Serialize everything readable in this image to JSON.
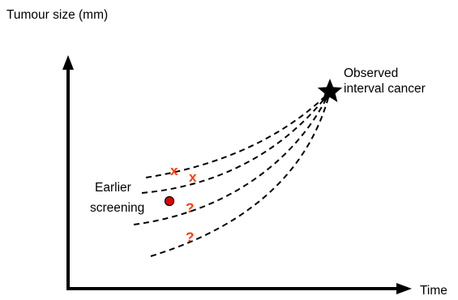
{
  "axes": {
    "y_label": "Tumour size (mm)",
    "x_label": "Time"
  },
  "end_point": {
    "label_line1": "Observed",
    "label_line2": "interval cancer",
    "icon": "star-icon"
  },
  "earlier_screening": {
    "label_line1": "Earlier",
    "label_line2": "screening",
    "icon": "filled-circle-icon"
  },
  "markers": {
    "x1": "x",
    "x2": "x",
    "q1": "?",
    "q2": "?"
  },
  "colors": {
    "axis": "#000000",
    "curve": "#000000",
    "marker": "#ff3b0a",
    "dot_fill": "#e00000",
    "dot_stroke": "#000000",
    "star": "#000000"
  }
}
